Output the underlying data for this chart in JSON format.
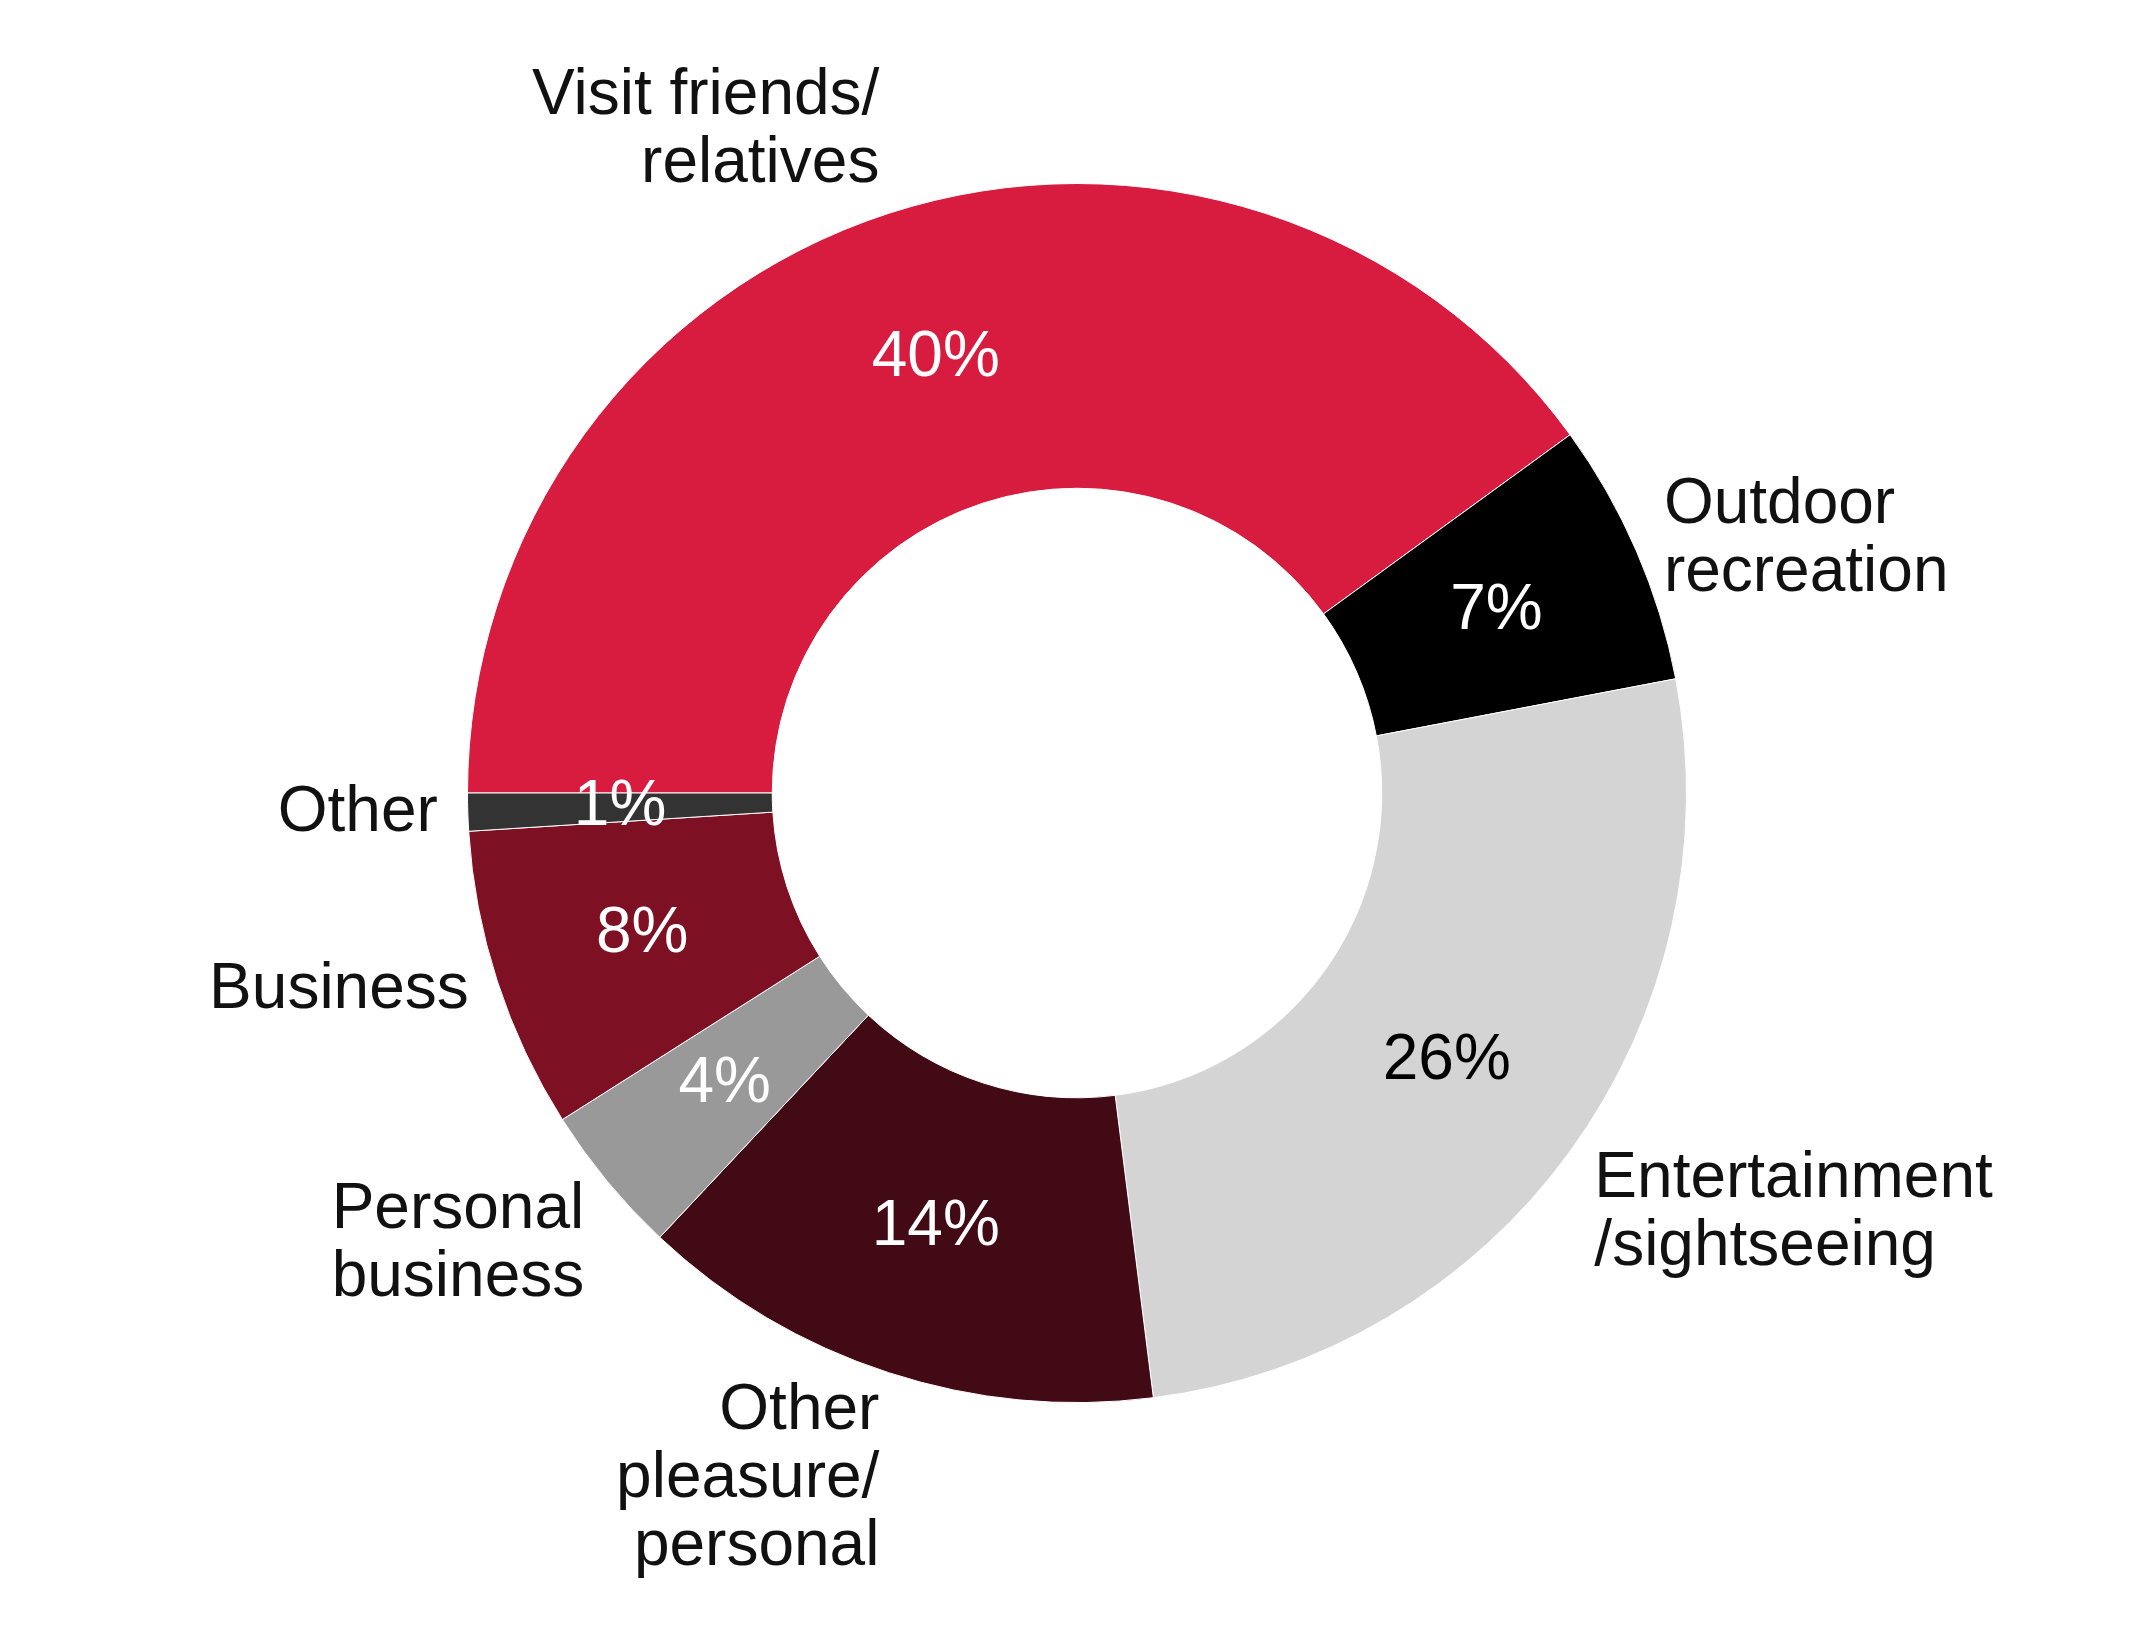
{
  "chart_data": {
    "type": "donut",
    "categories": [
      "Visit friends/ relatives",
      "Outdoor recreation",
      "Entertainment /sightseeing",
      "Other pleasure/ personal",
      "Personal business",
      "Business",
      "Other"
    ],
    "values": [
      40,
      7,
      26,
      14,
      4,
      8,
      1
    ],
    "colors": [
      "#d81c40",
      "#000000",
      "#d4d4d4",
      "#410a15",
      "#999999",
      "#7d1022",
      "#333333"
    ],
    "value_labels": [
      "40%",
      "7%",
      "26%",
      "14%",
      "4%",
      "8%",
      "1%"
    ]
  }
}
